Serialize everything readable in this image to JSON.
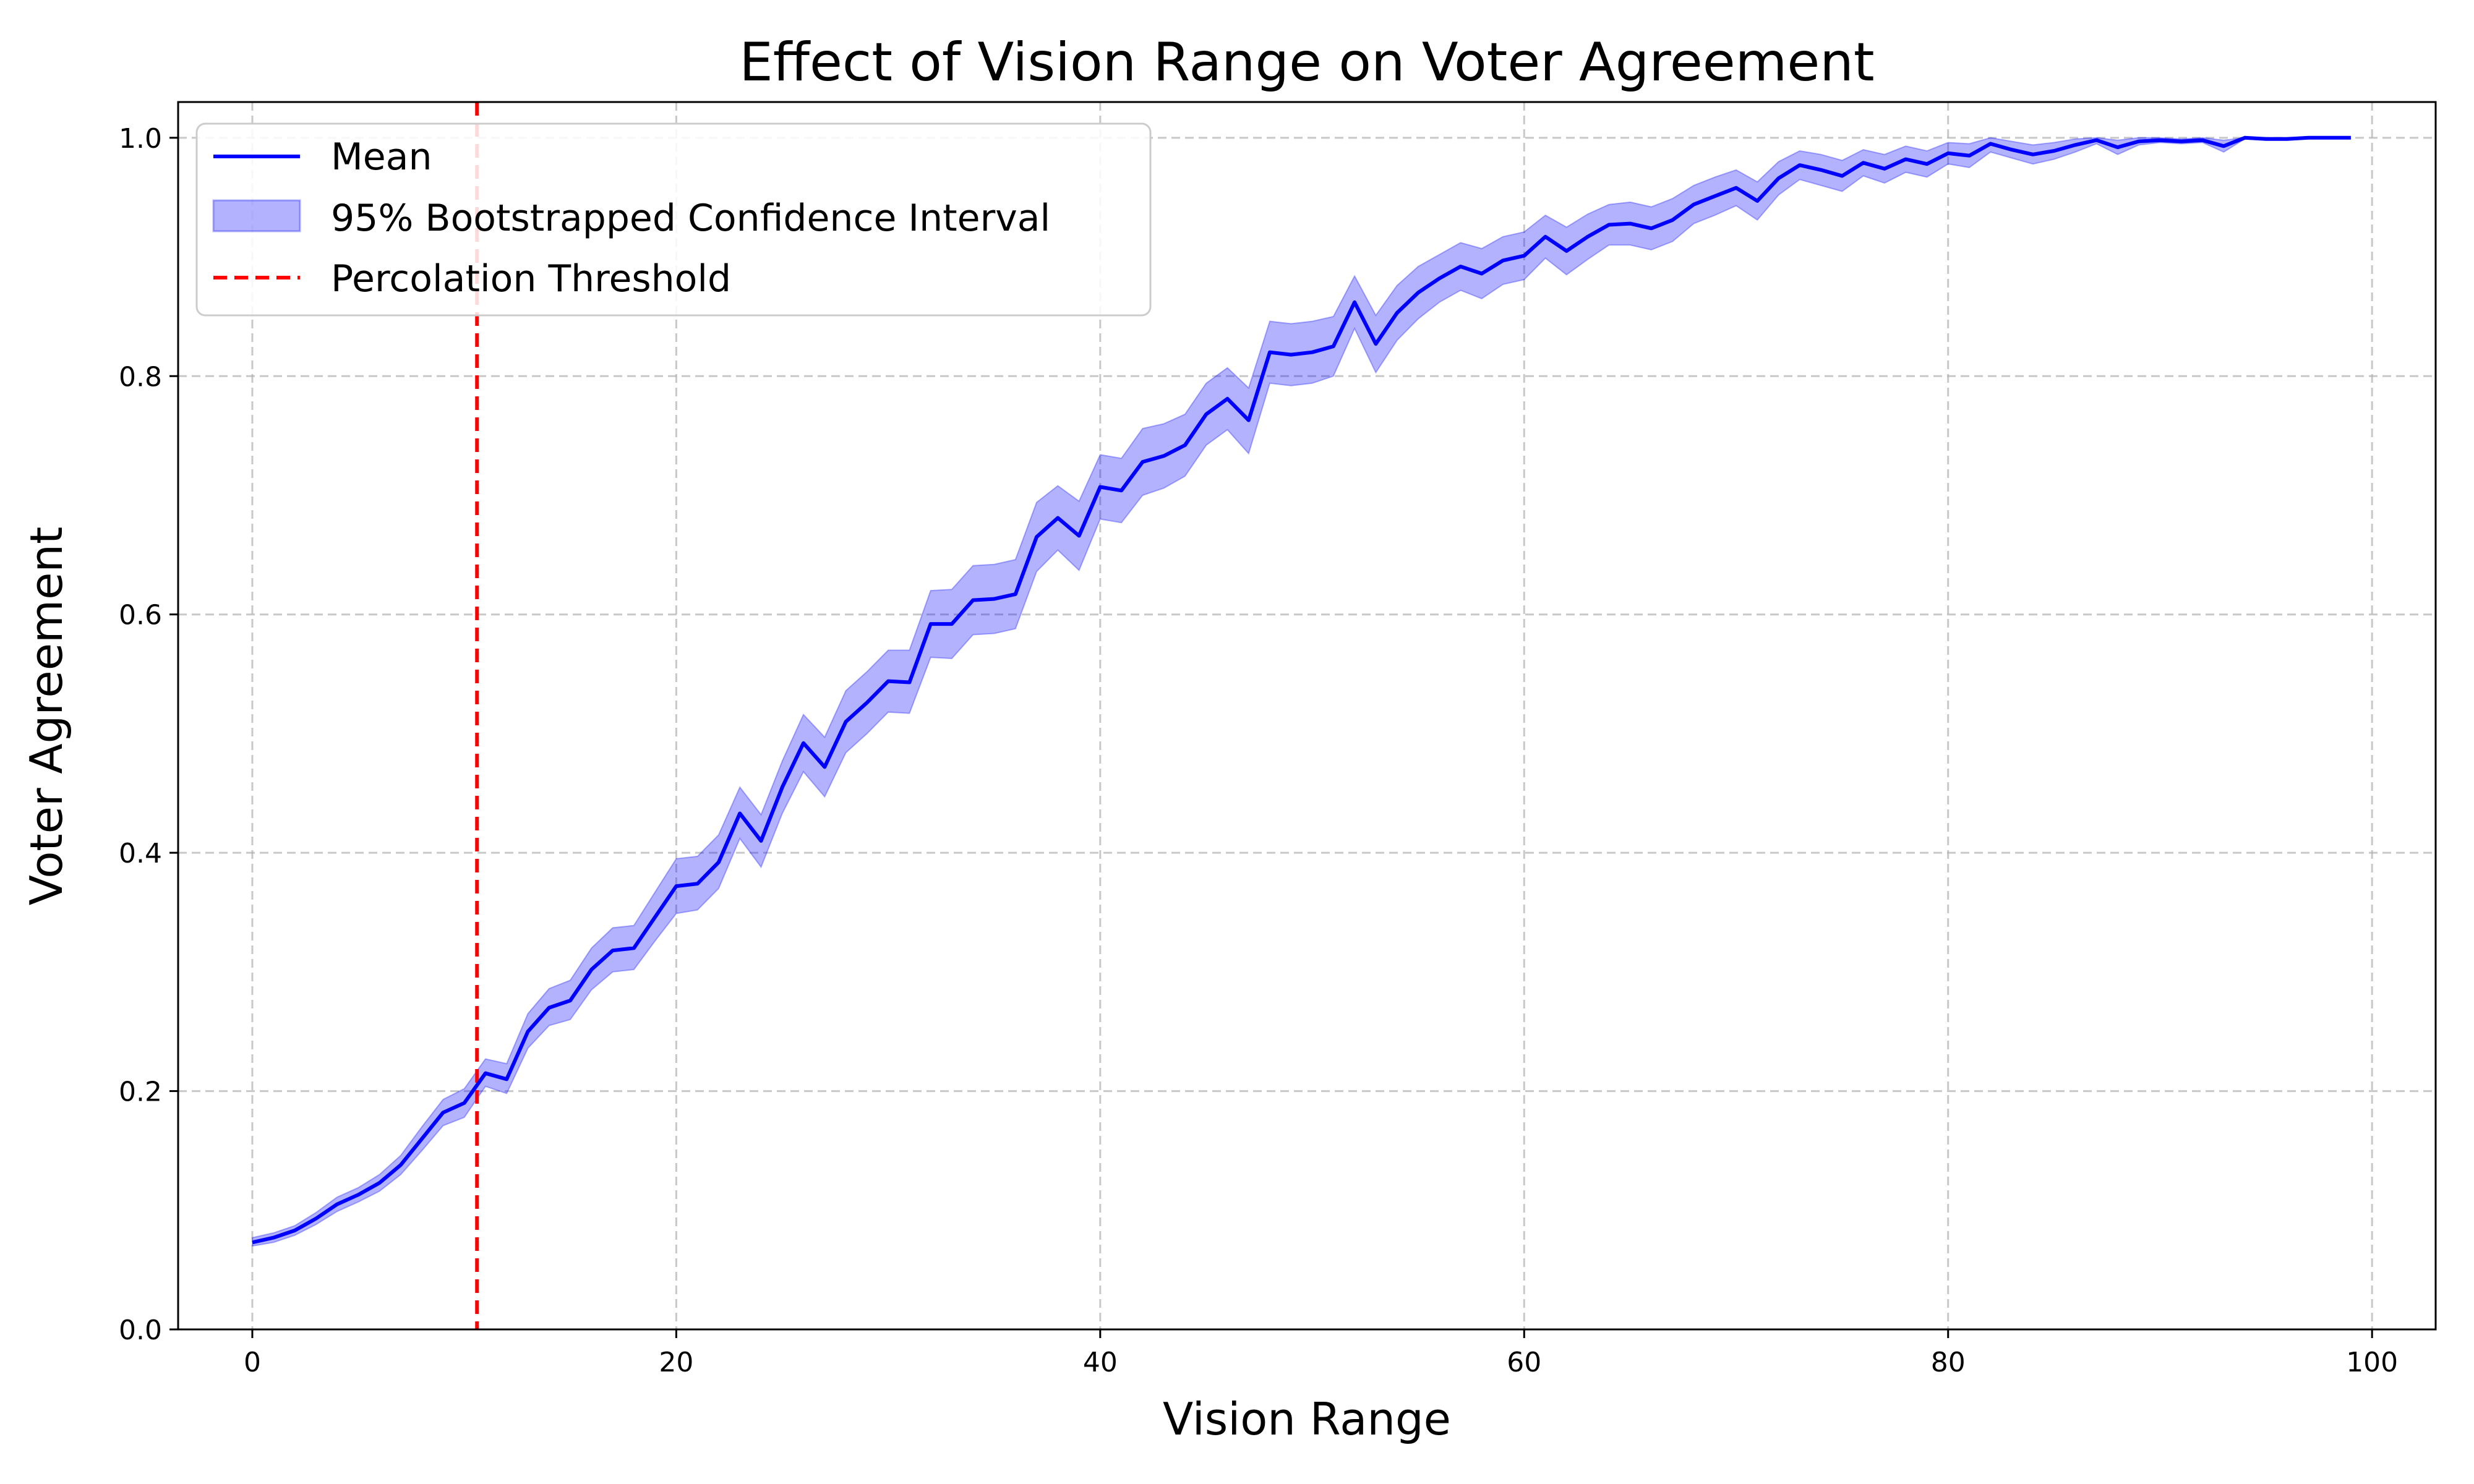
{
  "chart_data": {
    "type": "line",
    "title": "Effect of Vision Range on Voter Agreement",
    "xlabel": "Vision Range",
    "ylabel": "Voter Agreement",
    "xlim": [
      -3.5,
      103
    ],
    "ylim": [
      0,
      1.03
    ],
    "xticks": [
      0,
      20,
      40,
      60,
      80,
      100
    ],
    "yticks": [
      0.0,
      0.2,
      0.4,
      0.6,
      0.8,
      1.0
    ],
    "xtick_labels": [
      "0",
      "20",
      "40",
      "60",
      "80",
      "100"
    ],
    "ytick_labels": [
      "0.0",
      "0.2",
      "0.4",
      "0.6",
      "0.8",
      "1.0"
    ],
    "grid": true,
    "legend_position": "top-left",
    "legend": {
      "mean": "Mean",
      "ci": "95% Bootstrapped Confidence Interval",
      "threshold": "Percolation Threshold"
    },
    "colors": {
      "mean": "#0000ff",
      "ci_fill": "#0000ff",
      "threshold": "#ff0000",
      "grid": "#b0b0b0"
    },
    "percolation_threshold": 10.6,
    "series": [
      {
        "name": "Mean",
        "x": [
          0,
          1,
          2,
          3,
          4,
          5,
          6,
          7,
          8,
          9,
          10,
          11,
          12,
          13,
          14,
          15,
          16,
          17,
          18,
          19,
          20,
          21,
          22,
          23,
          24,
          25,
          26,
          27,
          28,
          29,
          30,
          31,
          32,
          33,
          34,
          35,
          36,
          37,
          38,
          39,
          40,
          41,
          42,
          43,
          44,
          45,
          46,
          47,
          48,
          49,
          50,
          51,
          52,
          53,
          54,
          55,
          56,
          57,
          58,
          59,
          60,
          61,
          62,
          63,
          64,
          65,
          66,
          67,
          68,
          69,
          70,
          71,
          72,
          73,
          74,
          75,
          76,
          77,
          78,
          79,
          80,
          81,
          82,
          83,
          84,
          85,
          86,
          87,
          88,
          89,
          90,
          91,
          92,
          93,
          94,
          95,
          96,
          97,
          98,
          99
        ],
        "y": [
          0.073,
          0.077,
          0.083,
          0.093,
          0.105,
          0.113,
          0.123,
          0.138,
          0.16,
          0.182,
          0.19,
          0.215,
          0.21,
          0.25,
          0.27,
          0.276,
          0.302,
          0.318,
          0.32,
          0.346,
          0.372,
          0.374,
          0.392,
          0.433,
          0.41,
          0.455,
          0.492,
          0.472,
          0.51,
          0.526,
          0.544,
          0.543,
          0.592,
          0.592,
          0.612,
          0.613,
          0.617,
          0.665,
          0.681,
          0.666,
          0.707,
          0.704,
          0.728,
          0.733,
          0.742,
          0.768,
          0.781,
          0.763,
          0.82,
          0.818,
          0.82,
          0.825,
          0.862,
          0.827,
          0.853,
          0.87,
          0.882,
          0.892,
          0.886,
          0.897,
          0.901,
          0.917,
          0.905,
          0.917,
          0.927,
          0.928,
          0.924,
          0.931,
          0.944,
          0.951,
          0.958,
          0.947,
          0.966,
          0.977,
          0.973,
          0.968,
          0.979,
          0.974,
          0.982,
          0.978,
          0.987,
          0.985,
          0.995,
          0.99,
          0.986,
          0.989,
          0.994,
          0.998,
          0.992,
          0.997,
          0.998,
          0.997,
          0.998,
          0.993,
          1.0,
          0.999,
          0.999,
          1.0,
          1.0,
          1.0
        ]
      },
      {
        "name": "95% Bootstrapped Confidence Interval",
        "x": [
          0,
          1,
          2,
          3,
          4,
          5,
          6,
          7,
          8,
          9,
          10,
          11,
          12,
          13,
          14,
          15,
          16,
          17,
          18,
          19,
          20,
          21,
          22,
          23,
          24,
          25,
          26,
          27,
          28,
          29,
          30,
          31,
          32,
          33,
          34,
          35,
          36,
          37,
          38,
          39,
          40,
          41,
          42,
          43,
          44,
          45,
          46,
          47,
          48,
          49,
          50,
          51,
          52,
          53,
          54,
          55,
          56,
          57,
          58,
          59,
          60,
          61,
          62,
          63,
          64,
          65,
          66,
          67,
          68,
          69,
          70,
          71,
          72,
          73,
          74,
          75,
          76,
          77,
          78,
          79,
          80,
          81,
          82,
          83,
          84,
          85,
          86,
          87,
          88,
          89,
          90,
          91,
          92,
          93,
          94,
          95,
          96,
          97,
          98,
          99
        ],
        "lower": [
          0.07,
          0.073,
          0.079,
          0.088,
          0.099,
          0.107,
          0.116,
          0.13,
          0.15,
          0.171,
          0.178,
          0.204,
          0.198,
          0.236,
          0.255,
          0.26,
          0.285,
          0.3,
          0.302,
          0.326,
          0.349,
          0.352,
          0.37,
          0.412,
          0.388,
          0.433,
          0.468,
          0.447,
          0.484,
          0.5,
          0.518,
          0.517,
          0.564,
          0.563,
          0.583,
          0.584,
          0.588,
          0.636,
          0.654,
          0.637,
          0.68,
          0.677,
          0.7,
          0.706,
          0.716,
          0.742,
          0.755,
          0.735,
          0.794,
          0.792,
          0.794,
          0.8,
          0.84,
          0.803,
          0.83,
          0.848,
          0.862,
          0.872,
          0.865,
          0.877,
          0.881,
          0.899,
          0.885,
          0.898,
          0.91,
          0.91,
          0.906,
          0.913,
          0.928,
          0.935,
          0.943,
          0.931,
          0.952,
          0.965,
          0.96,
          0.955,
          0.968,
          0.962,
          0.971,
          0.967,
          0.978,
          0.975,
          0.988,
          0.983,
          0.978,
          0.982,
          0.988,
          0.995,
          0.986,
          0.994,
          0.996,
          0.995,
          0.996,
          0.988,
          0.999,
          0.998,
          0.998,
          1.0,
          1.0,
          1.0
        ],
        "upper": [
          0.077,
          0.081,
          0.087,
          0.098,
          0.111,
          0.119,
          0.13,
          0.146,
          0.17,
          0.193,
          0.202,
          0.227,
          0.223,
          0.265,
          0.286,
          0.293,
          0.32,
          0.337,
          0.339,
          0.367,
          0.395,
          0.397,
          0.415,
          0.455,
          0.432,
          0.477,
          0.516,
          0.497,
          0.536,
          0.552,
          0.57,
          0.57,
          0.62,
          0.621,
          0.641,
          0.642,
          0.646,
          0.694,
          0.708,
          0.695,
          0.734,
          0.731,
          0.756,
          0.76,
          0.768,
          0.794,
          0.807,
          0.79,
          0.846,
          0.844,
          0.846,
          0.85,
          0.884,
          0.851,
          0.876,
          0.892,
          0.902,
          0.912,
          0.907,
          0.917,
          0.921,
          0.935,
          0.925,
          0.936,
          0.944,
          0.946,
          0.942,
          0.949,
          0.96,
          0.967,
          0.973,
          0.963,
          0.98,
          0.989,
          0.986,
          0.981,
          0.99,
          0.986,
          0.993,
          0.989,
          0.996,
          0.995,
          1.0,
          0.997,
          0.994,
          0.996,
          0.999,
          1.0,
          0.998,
          1.0,
          1.0,
          0.999,
          1.0,
          0.998,
          1.0,
          1.0,
          1.0,
          1.0,
          1.0,
          1.0
        ]
      }
    ]
  }
}
